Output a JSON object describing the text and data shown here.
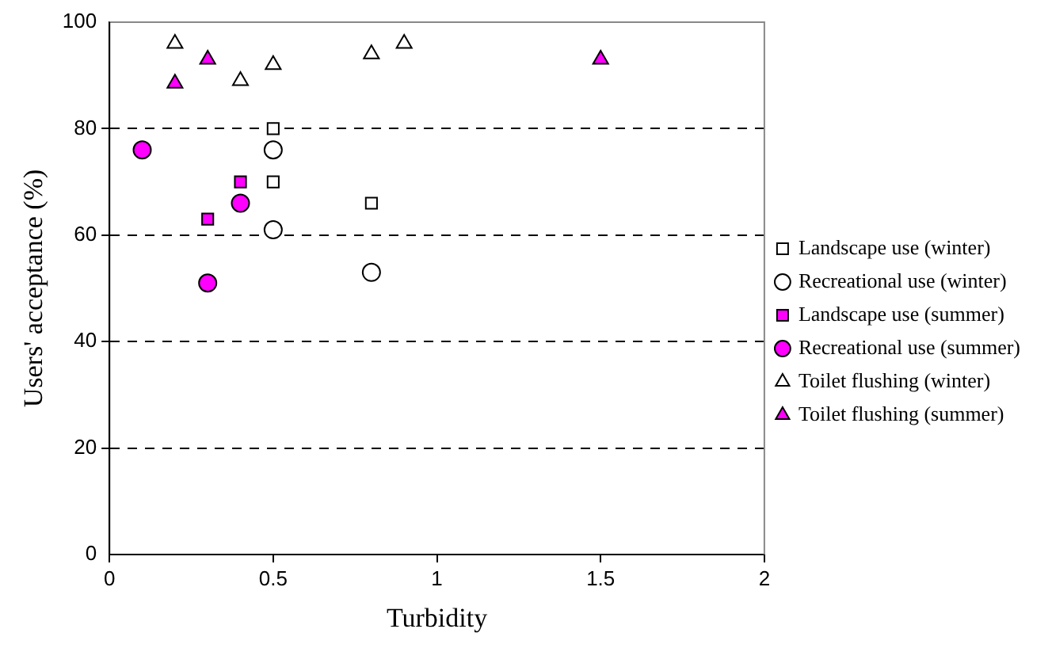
{
  "chart_data": {
    "type": "scatter",
    "xlabel": "Turbidity",
    "ylabel": "Users' acceptance (%)",
    "xlim": [
      0,
      2
    ],
    "xticks": [
      0,
      0.5,
      1,
      1.5,
      2
    ],
    "ylim": [
      0,
      100
    ],
    "yticks": [
      0,
      20,
      40,
      60,
      80,
      100
    ],
    "grid": "y",
    "legend": "right",
    "series": [
      {
        "name": "Landscape use (winter)",
        "color": "#ffffff",
        "marker": "square",
        "x": [
          0.5,
          0.5,
          0.8
        ],
        "values": [
          80,
          70,
          66
        ]
      },
      {
        "name": "Recreational use (winter)",
        "color": "#ffffff",
        "marker": "circle",
        "x": [
          0.5,
          0.5,
          0.8
        ],
        "values": [
          76,
          61,
          53
        ]
      },
      {
        "name": "Landscape use (summer)",
        "color": "#ff00ff",
        "marker": "square",
        "x": [
          0.3,
          0.4
        ],
        "values": [
          63,
          70
        ]
      },
      {
        "name": "Recreational use (summer)",
        "color": "#ff00ff",
        "marker": "circle",
        "x": [
          0.1,
          0.4,
          0.3
        ],
        "values": [
          76,
          66,
          51
        ]
      },
      {
        "name": "Toilet flushing (winter)",
        "color": "#ffffff",
        "marker": "triangle",
        "x": [
          0.2,
          0.4,
          0.5,
          0.8,
          0.9
        ],
        "values": [
          96,
          89,
          92,
          94,
          96
        ]
      },
      {
        "name": "Toilet flushing (summer)",
        "color": "#ff00ff",
        "marker": "triangle",
        "x": [
          0.2,
          0.3,
          1.5
        ],
        "values": [
          88.5,
          93,
          93
        ]
      }
    ]
  }
}
